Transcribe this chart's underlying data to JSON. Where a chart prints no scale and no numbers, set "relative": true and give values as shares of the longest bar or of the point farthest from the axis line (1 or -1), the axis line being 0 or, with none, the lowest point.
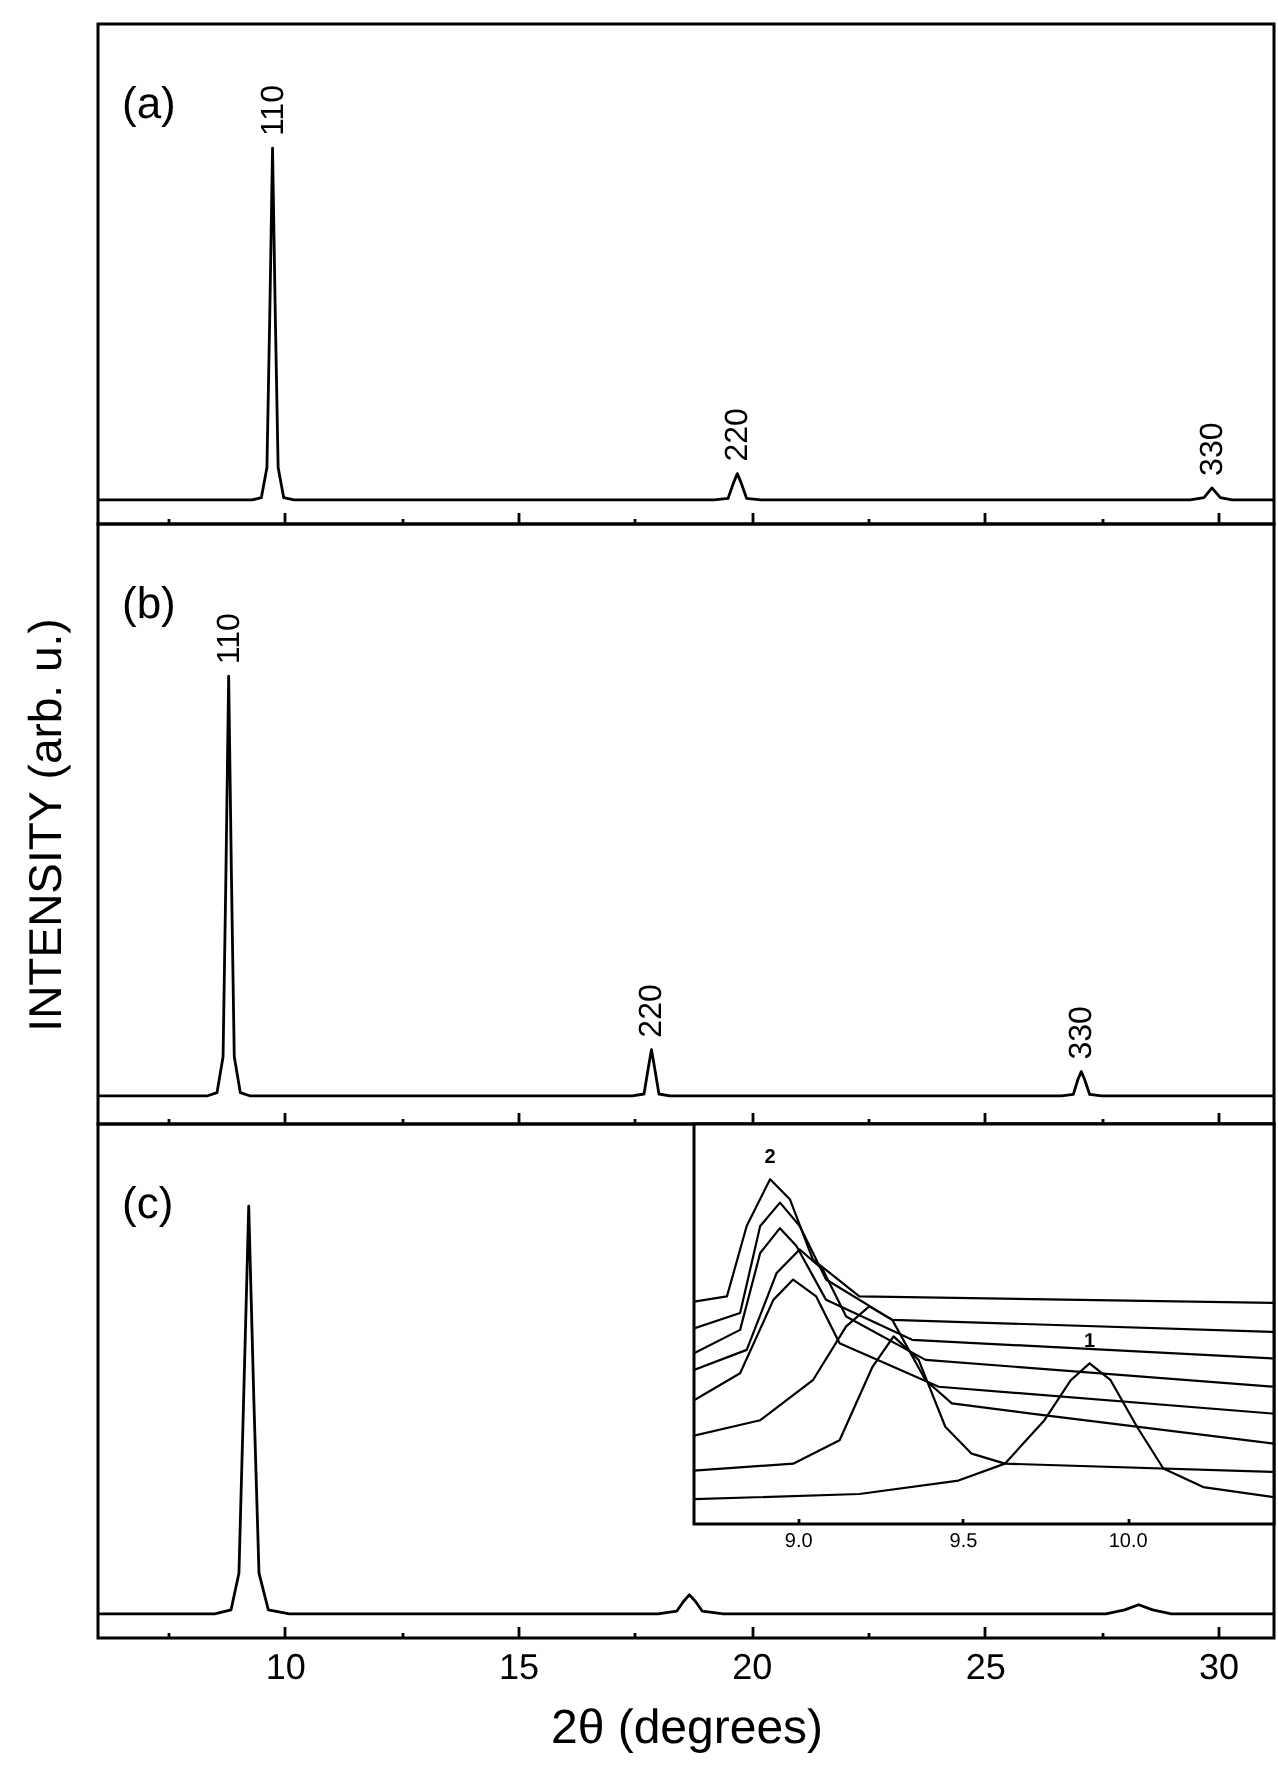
{
  "chart_data": [
    {
      "type": "line",
      "title": "(a)",
      "relative": true,
      "color": "#000000",
      "xlim": [
        6,
        31.2
      ],
      "xticks": [
        {
          "value": 7.5,
          "label": null
        },
        10,
        {
          "value": 12.5,
          "label": null
        },
        15,
        {
          "value": 17.5,
          "label": null
        },
        20,
        {
          "value": 22.5,
          "label": null
        },
        25,
        {
          "value": 27.5,
          "label": null
        },
        30
      ],
      "tick_labels": false,
      "x": [
        6,
        9.3,
        9.5,
        9.62,
        9.68,
        9.74,
        9.8,
        9.86,
        9.98,
        10.2,
        19.2,
        19.5,
        19.62,
        19.7,
        19.78,
        19.9,
        20.2,
        29.4,
        29.7,
        29.87,
        30.05,
        30.3,
        31.2
      ],
      "values": [
        0.064,
        0.064,
        0.07,
        0.15,
        0.55,
        1,
        0.55,
        0.15,
        0.07,
        0.064,
        0.064,
        0.068,
        0.11,
        0.134,
        0.11,
        0.068,
        0.064,
        0.064,
        0.07,
        0.096,
        0.07,
        0.064,
        0.064
      ],
      "annotations": [
        {
          "text": "110",
          "x": 9.74,
          "y": 1
        },
        {
          "text": "220",
          "x": 19.7,
          "y": 0.134
        },
        {
          "text": "330",
          "x": 29.87,
          "y": 0.096
        }
      ]
    },
    {
      "type": "line",
      "title": "(b)",
      "ylabel": "INTENSITY (arb. u.)",
      "relative": true,
      "color": "#000000",
      "xlim": [
        6,
        31.2
      ],
      "xticks": [
        {
          "value": 7.5,
          "label": null
        },
        10,
        {
          "value": 12.5,
          "label": null
        },
        15,
        {
          "value": 17.5,
          "label": null
        },
        20,
        {
          "value": 22.5,
          "label": null
        },
        25,
        {
          "value": 27.5,
          "label": null
        },
        30
      ],
      "tick_labels": false,
      "x": [
        6,
        8.35,
        8.55,
        8.68,
        8.74,
        8.8,
        8.86,
        8.92,
        9.05,
        9.25,
        17.45,
        17.7,
        17.8,
        17.86,
        17.92,
        18.02,
        18.25,
        26.65,
        26.9,
        27.0,
        27.07,
        27.14,
        27.25,
        27.5,
        31.2
      ],
      "values": [
        0.063,
        0.063,
        0.07,
        0.15,
        0.55,
        1,
        0.55,
        0.15,
        0.07,
        0.063,
        0.063,
        0.067,
        0.13,
        0.166,
        0.13,
        0.067,
        0.063,
        0.063,
        0.066,
        0.1,
        0.117,
        0.1,
        0.066,
        0.063,
        0.063
      ],
      "annotations": [
        {
          "text": "110",
          "x": 8.8,
          "y": 1
        },
        {
          "text": "220",
          "x": 17.86,
          "y": 0.166
        },
        {
          "text": "330",
          "x": 27.07,
          "y": 0.117
        }
      ]
    },
    {
      "type": "line",
      "title": "(c)",
      "xlabel": "2θ (degrees)",
      "relative": true,
      "color": "#000000",
      "xlim": [
        6,
        31.2
      ],
      "xticks": [
        {
          "value": 7.5,
          "label": null
        },
        10,
        {
          "value": 12.5,
          "label": null
        },
        15,
        {
          "value": 17.5,
          "label": null
        },
        20,
        {
          "value": 22.5,
          "label": null
        },
        25,
        {
          "value": 27.5,
          "label": null
        },
        30
      ],
      "tick_labels": "x",
      "x": [
        6,
        8.5,
        8.85,
        9.02,
        9.12,
        9.23,
        9.34,
        9.45,
        9.65,
        10.1,
        18.0,
        18.4,
        18.55,
        18.67,
        18.8,
        18.95,
        19.4,
        27.6,
        28.0,
        28.3,
        28.6,
        29.0,
        31.2
      ],
      "values": [
        0.056,
        0.056,
        0.065,
        0.15,
        0.55,
        1,
        0.55,
        0.15,
        0.065,
        0.056,
        0.056,
        0.062,
        0.085,
        0.1,
        0.085,
        0.062,
        0.056,
        0.056,
        0.065,
        0.077,
        0.065,
        0.056,
        0.056
      ]
    },
    {
      "type": "line",
      "relative": true,
      "xlim": [
        8.685,
        10.446
      ],
      "xticks": [
        {
          "value": 9,
          "label": "9.0"
        },
        {
          "value": 9.5,
          "label": "9.5"
        },
        {
          "value": 10,
          "label": "10.0"
        }
      ],
      "tick_labels": "x",
      "series": [
        {
          "color": "#000000",
          "x": [
            8.685,
            9.187,
            9.488,
            9.629,
            9.749,
            9.829,
            9.886,
            9.95,
            10.03,
            10.11,
            10.231,
            10.446
          ],
          "values": [
            0.072,
            0.087,
            0.126,
            0.175,
            0.301,
            0.417,
            0.466,
            0.417,
            0.282,
            0.161,
            0.107,
            0.078
          ]
        },
        {
          "color": "#000000",
          "x": [
            8.685,
            8.986,
            9.127,
            9.227,
            9.291,
            9.367,
            9.448,
            9.528,
            9.629,
            10.446
          ],
          "values": [
            0.155,
            0.175,
            0.243,
            0.456,
            0.544,
            0.476,
            0.282,
            0.204,
            0.175,
            0.151
          ]
        },
        {
          "color": "#000000",
          "x": [
            8.685,
            8.886,
            9.046,
            9.147,
            9.217,
            9.287,
            9.388,
            9.468,
            9.709,
            10.446
          ],
          "values": [
            0.256,
            0.301,
            0.417,
            0.573,
            0.631,
            0.592,
            0.417,
            0.35,
            0.32,
            0.233
          ]
        },
        {
          "color": "#000000",
          "x": [
            8.685,
            8.825,
            8.926,
            8.986,
            9.056,
            9.127,
            9.428,
            10.446
          ],
          "values": [
            0.359,
            0.437,
            0.65,
            0.709,
            0.66,
            0.524,
            0.398,
            0.32
          ]
        },
        {
          "color": "#000000",
          "x": [
            8.685,
            8.845,
            8.936,
            9.006,
            9.076,
            9.147,
            9.388,
            10.446
          ],
          "values": [
            0.447,
            0.505,
            0.728,
            0.796,
            0.738,
            0.602,
            0.476,
            0.398
          ]
        },
        {
          "color": "#000000",
          "x": [
            8.685,
            8.825,
            8.886,
            8.946,
            8.996,
            9.086,
            9.347,
            10.446
          ],
          "values": [
            0.495,
            0.563,
            0.786,
            0.858,
            0.806,
            0.65,
            0.534,
            0.48
          ]
        },
        {
          "color": "#000000",
          "x": [
            8.685,
            8.825,
            8.886,
            8.946,
            9.006,
            9.086,
            9.287,
            10.446
          ],
          "values": [
            0.567,
            0.612,
            0.864,
            0.932,
            0.864,
            0.709,
            0.592,
            0.557
          ]
        },
        {
          "color": "#000000",
          "x": [
            8.685,
            8.785,
            8.845,
            8.916,
            8.976,
            9.046,
            9.187,
            10.446
          ],
          "values": [
            0.645,
            0.66,
            0.864,
            1,
            0.942,
            0.767,
            0.66,
            0.641
          ]
        }
      ],
      "annotations": [
        {
          "text": "1",
          "x": 9.886,
          "y": 0.466
        },
        {
          "text": "2",
          "x": 8.916,
          "y": 1
        }
      ]
    }
  ]
}
